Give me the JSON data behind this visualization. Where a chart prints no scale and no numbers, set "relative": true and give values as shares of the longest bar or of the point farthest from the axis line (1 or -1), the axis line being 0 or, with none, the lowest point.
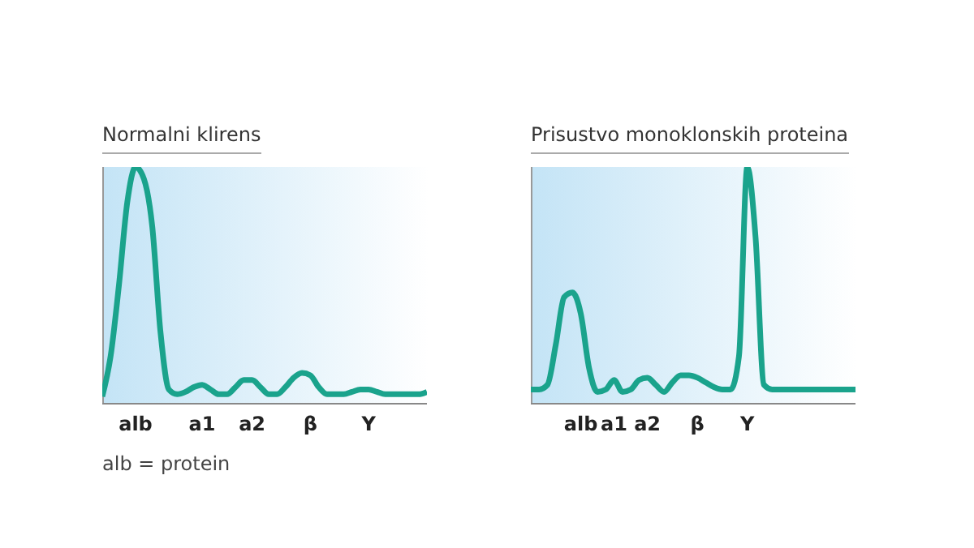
{
  "chart_data": [
    {
      "type": "line",
      "title": "Normalni klirens",
      "relative": true,
      "legend": false,
      "grid": false,
      "marker": "none",
      "line_style": "solid",
      "annotations": [
        "alb = protein"
      ],
      "categories": [
        null,
        null,
        null,
        null,
        "alb",
        null,
        null,
        null,
        null,
        null,
        null,
        null,
        "a1",
        null,
        null,
        null,
        null,
        null,
        "a2",
        null,
        null,
        null,
        null,
        null,
        null,
        "β",
        null,
        null,
        null,
        null,
        null,
        null,
        "Y",
        null,
        null,
        null,
        null,
        null,
        null,
        null
      ],
      "series": [
        {
          "color": "#1aa38c",
          "values": [
            0.03,
            0.2,
            0.5,
            0.85,
            1.0,
            0.95,
            0.75,
            0.3,
            0.06,
            0.04,
            0.05,
            0.07,
            0.08,
            0.06,
            0.04,
            0.04,
            0.07,
            0.1,
            0.1,
            0.07,
            0.04,
            0.04,
            0.07,
            0.11,
            0.13,
            0.12,
            0.07,
            0.04,
            0.04,
            0.04,
            0.05,
            0.06,
            0.06,
            0.05,
            0.04,
            0.04,
            0.04,
            0.04,
            0.04,
            0.05
          ]
        }
      ]
    },
    {
      "type": "line",
      "title": "Prisustvo monoklonskih proteina",
      "relative": true,
      "legend": false,
      "grid": false,
      "marker": "none",
      "line_style": "solid",
      "categories": [
        null,
        null,
        null,
        null,
        null,
        null,
        "alb",
        null,
        null,
        null,
        "a1",
        null,
        null,
        null,
        "a2",
        null,
        null,
        null,
        null,
        null,
        "β",
        null,
        null,
        null,
        null,
        null,
        "Y",
        null,
        null,
        null,
        null,
        null,
        null,
        null,
        null,
        null,
        null,
        null,
        null,
        null
      ],
      "series": [
        {
          "color": "#1aa38c",
          "values": [
            0.06,
            0.06,
            0.08,
            0.25,
            0.45,
            0.47,
            0.38,
            0.15,
            0.05,
            0.06,
            0.1,
            0.05,
            0.06,
            0.1,
            0.11,
            0.08,
            0.05,
            0.09,
            0.12,
            0.12,
            0.11,
            0.09,
            0.07,
            0.06,
            0.06,
            0.2,
            1.0,
            0.7,
            0.08,
            0.06,
            0.06,
            0.06,
            0.06,
            0.06,
            0.06,
            0.06,
            0.06,
            0.06,
            0.06,
            0.06
          ]
        }
      ]
    }
  ]
}
